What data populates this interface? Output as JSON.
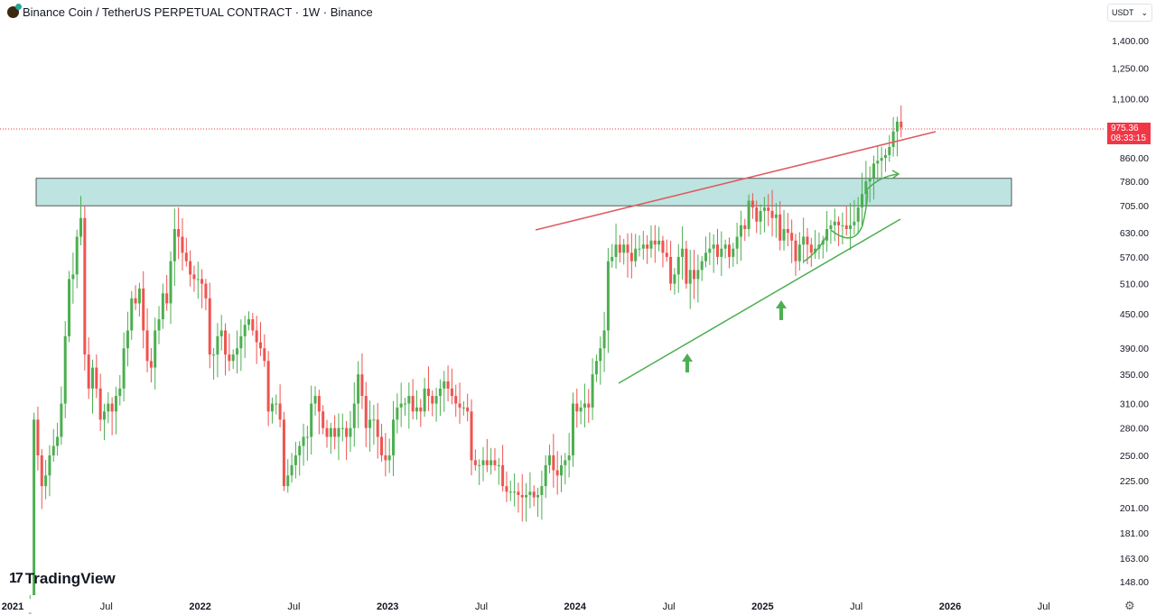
{
  "header": {
    "title": "Binance Coin / TetherUS PERPETUAL CONTRACT · 1W · Binance",
    "currency": "USDT"
  },
  "logo": "TradingView",
  "last_price": {
    "value": "975.36",
    "countdown": "08:33:15"
  },
  "colors": {
    "up": "#4caf50",
    "down": "#ef5350",
    "zone": "#b2dfdb",
    "resistance": "#e05a60",
    "support": "#4caf50",
    "price_line": "#f23645"
  },
  "icons": {
    "settings": "gear-icon",
    "dropdown": "chevron-down-icon"
  },
  "chart_data": {
    "type": "candlestick",
    "scale": "log",
    "ylim": [
      148,
      1400
    ],
    "y_ticks": [
      "1,400.00",
      "1,250.00",
      "1,100.00",
      "860.00",
      "780.00",
      "705.00",
      "630.00",
      "570.00",
      "510.00",
      "450.00",
      "390.00",
      "350.00",
      "310.00",
      "280.00",
      "250.00",
      "225.00",
      "201.00",
      "181.00",
      "163.00",
      "148.00"
    ],
    "x_ticks": [
      {
        "label": "2021",
        "date": "2021-01"
      },
      {
        "label": "Jul",
        "date": "2021-07"
      },
      {
        "label": "2022",
        "date": "2022-01"
      },
      {
        "label": "Jul",
        "date": "2022-07"
      },
      {
        "label": "2023",
        "date": "2023-01"
      },
      {
        "label": "Jul",
        "date": "2023-07"
      },
      {
        "label": "2024",
        "date": "2024-01"
      },
      {
        "label": "Jul",
        "date": "2024-07"
      },
      {
        "label": "2025",
        "date": "2025-01"
      },
      {
        "label": "Jul",
        "date": "2025-07"
      },
      {
        "label": "2026",
        "date": "2026-01"
      },
      {
        "label": "Jul",
        "date": "2026-07"
      }
    ],
    "first_open": 40,
    "weekly_closes_by_month": [
      {
        "m": "2021-02",
        "c": [
          130,
          290,
          250,
          220
        ]
      },
      {
        "m": "2021-03",
        "c": [
          230,
          250,
          260,
          270
        ]
      },
      {
        "m": "2021-04",
        "c": [
          310,
          410,
          520,
          530
        ]
      },
      {
        "m": "2021-05",
        "c": [
          620,
          670,
          380,
          330
        ]
      },
      {
        "m": "2021-06",
        "c": [
          360,
          330,
          290,
          300
        ]
      },
      {
        "m": "2021-07",
        "c": [
          310,
          300,
          320,
          330
        ]
      },
      {
        "m": "2021-08",
        "c": [
          390,
          420,
          480,
          470
        ]
      },
      {
        "m": "2021-09",
        "c": [
          500,
          420,
          370,
          360
        ]
      },
      {
        "m": "2021-10",
        "c": [
          420,
          440,
          490,
          470
        ]
      },
      {
        "m": "2021-11",
        "c": [
          560,
          640,
          620,
          580
        ]
      },
      {
        "m": "2021-12",
        "c": [
          560,
          530,
          520,
          520
        ]
      },
      {
        "m": "2022-01",
        "c": [
          510,
          480,
          380,
          380
        ]
      },
      {
        "m": "2022-02",
        "c": [
          410,
          420,
          380,
          370
        ]
      },
      {
        "m": "2022-03",
        "c": [
          380,
          390,
          410,
          430
        ]
      },
      {
        "m": "2022-04",
        "c": [
          440,
          420,
          400,
          390
        ]
      },
      {
        "m": "2022-05",
        "c": [
          370,
          300,
          310,
          310
        ]
      },
      {
        "m": "2022-06",
        "c": [
          290,
          220,
          230,
          240
        ]
      },
      {
        "m": "2022-07",
        "c": [
          250,
          260,
          270,
          270
        ]
      },
      {
        "m": "2022-08",
        "c": [
          310,
          320,
          300,
          280
        ]
      },
      {
        "m": "2022-09",
        "c": [
          270,
          280,
          270,
          280
        ]
      },
      {
        "m": "2022-10",
        "c": [
          280,
          270,
          280,
          310
        ]
      },
      {
        "m": "2022-11",
        "c": [
          350,
          320,
          280,
          290
        ]
      },
      {
        "m": "2022-12",
        "c": [
          290,
          270,
          250,
          245
        ]
      },
      {
        "m": "2023-01",
        "c": [
          250,
          290,
          305,
          310
        ]
      },
      {
        "m": "2023-02",
        "c": [
          310,
          320,
          300,
          305
        ]
      },
      {
        "m": "2023-03",
        "c": [
          300,
          330,
          320,
          310
        ]
      },
      {
        "m": "2023-04",
        "c": [
          320,
          330,
          340,
          330
        ]
      },
      {
        "m": "2023-05",
        "c": [
          320,
          310,
          305,
          305
        ]
      },
      {
        "m": "2023-06",
        "c": [
          300,
          245,
          240,
          240
        ]
      },
      {
        "m": "2023-07",
        "c": [
          245,
          240,
          245,
          240
        ]
      },
      {
        "m": "2023-08",
        "c": [
          240,
          220,
          215,
          215
        ]
      },
      {
        "m": "2023-09",
        "c": [
          215,
          212,
          210,
          212
        ]
      },
      {
        "m": "2023-10",
        "c": [
          215,
          210,
          212,
          220
        ]
      },
      {
        "m": "2023-11",
        "c": [
          240,
          250,
          235,
          230
        ]
      },
      {
        "m": "2023-12",
        "c": [
          240,
          245,
          250,
          310
        ]
      },
      {
        "m": "2024-01",
        "c": [
          300,
          305,
          310,
          305
        ]
      },
      {
        "m": "2024-02",
        "c": [
          350,
          370,
          390,
          420
        ]
      },
      {
        "m": "2024-03",
        "c": [
          560,
          570,
          600,
          580
        ]
      },
      {
        "m": "2024-04",
        "c": [
          600,
          580,
          560,
          590
        ]
      },
      {
        "m": "2024-05",
        "c": [
          590,
          600,
          590,
          610
        ]
      },
      {
        "m": "2024-06",
        "c": [
          600,
          610,
          580,
          570
        ]
      },
      {
        "m": "2024-07",
        "c": [
          510,
          530,
          570,
          590
        ]
      },
      {
        "m": "2024-08",
        "c": [
          510,
          540,
          520,
          540
        ]
      },
      {
        "m": "2024-09",
        "c": [
          560,
          580,
          590,
          600
        ]
      },
      {
        "m": "2024-10",
        "c": [
          570,
          590,
          600,
          570
        ]
      },
      {
        "m": "2024-11",
        "c": [
          590,
          620,
          650,
          640
        ]
      },
      {
        "m": "2024-12",
        "c": [
          720,
          700,
          660,
          690
        ]
      },
      {
        "m": "2025-01",
        "c": [
          700,
          690,
          670,
          680
        ]
      },
      {
        "m": "2025-02",
        "c": [
          610,
          640,
          630,
          610
        ]
      },
      {
        "m": "2025-03",
        "c": [
          560,
          600,
          620,
          600
        ]
      },
      {
        "m": "2025-04",
        "c": [
          580,
          590,
          600,
          610
        ]
      },
      {
        "m": "2025-05",
        "c": [
          640,
          650,
          660,
          650
        ]
      },
      {
        "m": "2025-06",
        "c": [
          650,
          640,
          650,
          660
        ]
      },
      {
        "m": "2025-07",
        "c": [
          700,
          740,
          780,
          790
        ]
      },
      {
        "m": "2025-08",
        "c": [
          840,
          850,
          860,
          870
        ]
      },
      {
        "m": "2025-09",
        "c": [
          900,
          960,
          1000,
          975.36
        ]
      }
    ],
    "zone": [
      705,
      790
    ]
  }
}
